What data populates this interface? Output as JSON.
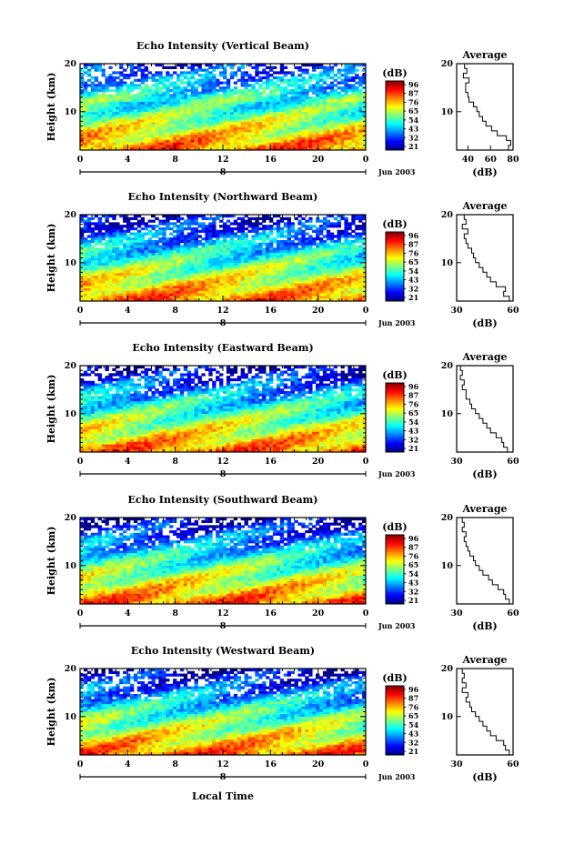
{
  "figure": {
    "x_axis_title": "Local Time",
    "date_label": "Jun 2003"
  },
  "chart_data": [
    {
      "type": "heatmap",
      "title": "Echo Intensity (Vertical Beam)",
      "ylabel": "Height (km)",
      "xlabel": "",
      "x_ticks": [
        "0",
        "4",
        "8",
        "12",
        "16",
        "20",
        "0"
      ],
      "y_ticks": [
        "20",
        "10"
      ],
      "ylim": [
        2,
        20
      ],
      "xlim": [
        0,
        24
      ],
      "day_marker": "8",
      "colorbar": {
        "unit": "(dB)",
        "ticks": [
          "96",
          "87",
          "76",
          "65",
          "54",
          "43",
          "32",
          "21"
        ]
      },
      "profile": {
        "title": "Average",
        "xlabel": "(dB)",
        "x_ticks": [
          "40",
          "60",
          "80"
        ],
        "xlim": [
          30,
          80
        ],
        "heights": [
          2.5,
          3.5,
          4.5,
          5.5,
          6.5,
          7.5,
          8.5,
          9.5,
          10.5,
          11.5,
          12.5,
          13.5,
          14.5,
          15.5,
          16.5,
          17.5,
          18.5,
          19.5
        ],
        "values": [
          76,
          78,
          74,
          66,
          61,
          56,
          53,
          50,
          48,
          45,
          41,
          40,
          38,
          38,
          41,
          36,
          39,
          37
        ]
      }
    },
    {
      "type": "heatmap",
      "title": "Echo Intensity (Northward Beam)",
      "ylabel": "Height (km)",
      "xlabel": "",
      "x_ticks": [
        "0",
        "4",
        "8",
        "12",
        "16",
        "20",
        "0"
      ],
      "y_ticks": [
        "20",
        "10"
      ],
      "ylim": [
        2,
        20
      ],
      "xlim": [
        0,
        24
      ],
      "day_marker": "8",
      "colorbar": {
        "unit": "(dB)",
        "ticks": [
          "96",
          "87",
          "76",
          "65",
          "54",
          "43",
          "32",
          "21"
        ]
      },
      "profile": {
        "title": "Average",
        "xlabel": "(dB)",
        "x_ticks": [
          "30",
          "60"
        ],
        "xlim": [
          30,
          60
        ],
        "heights": [
          2.5,
          3.5,
          4.5,
          5.5,
          6.5,
          7.5,
          8.5,
          9.5,
          10.5,
          11.5,
          12.5,
          13.5,
          14.5,
          15.5,
          16.5,
          17.5,
          18.5,
          19.5
        ],
        "values": [
          58,
          55,
          56,
          51,
          48,
          46,
          44,
          42,
          40,
          39,
          38,
          36,
          35,
          34,
          36,
          33,
          35,
          34
        ]
      }
    },
    {
      "type": "heatmap",
      "title": "Echo Intensity (Eastward Beam)",
      "ylabel": "Height (km)",
      "xlabel": "",
      "x_ticks": [
        "0",
        "4",
        "8",
        "12",
        "16",
        "20",
        "0"
      ],
      "y_ticks": [
        "20",
        "10"
      ],
      "ylim": [
        2,
        20
      ],
      "xlim": [
        0,
        24
      ],
      "day_marker": "8",
      "colorbar": {
        "unit": "(dB)",
        "ticks": [
          "96",
          "87",
          "76",
          "65",
          "54",
          "43",
          "32",
          "21"
        ]
      },
      "profile": {
        "title": "Average",
        "xlabel": "(dB)",
        "x_ticks": [
          "30",
          "60"
        ],
        "xlim": [
          30,
          60
        ],
        "heights": [
          2.5,
          3.5,
          4.5,
          5.5,
          6.5,
          7.5,
          8.5,
          9.5,
          10.5,
          11.5,
          12.5,
          13.5,
          14.5,
          15.5,
          16.5,
          17.5,
          18.5,
          19.5
        ],
        "values": [
          57,
          55,
          54,
          51,
          48,
          46,
          44,
          42,
          40,
          38,
          37,
          35,
          35,
          33,
          34,
          32,
          33,
          32
        ]
      }
    },
    {
      "type": "heatmap",
      "title": "Echo Intensity (Southward Beam)",
      "ylabel": "Height (km)",
      "xlabel": "",
      "x_ticks": [
        "0",
        "4",
        "8",
        "12",
        "16",
        "20",
        "0"
      ],
      "y_ticks": [
        "20",
        "10"
      ],
      "ylim": [
        2,
        20
      ],
      "xlim": [
        0,
        24
      ],
      "day_marker": "8",
      "colorbar": {
        "unit": "(dB)",
        "ticks": [
          "96",
          "87",
          "76",
          "65",
          "54",
          "43",
          "32",
          "21"
        ]
      },
      "profile": {
        "title": "Average",
        "xlabel": "(dB)",
        "x_ticks": [
          "30",
          "60"
        ],
        "xlim": [
          30,
          60
        ],
        "heights": [
          2.5,
          3.5,
          4.5,
          5.5,
          6.5,
          7.5,
          8.5,
          9.5,
          10.5,
          11.5,
          12.5,
          13.5,
          14.5,
          15.5,
          16.5,
          17.5,
          18.5,
          19.5
        ],
        "values": [
          58,
          56,
          55,
          52,
          49,
          47,
          44,
          42,
          40,
          39,
          37,
          36,
          35,
          34,
          35,
          33,
          34,
          33
        ]
      }
    },
    {
      "type": "heatmap",
      "title": "Echo Intensity (Westward Beam)",
      "ylabel": "Height (km)",
      "xlabel": "Local Time",
      "x_ticks": [
        "0",
        "4",
        "8",
        "12",
        "16",
        "20",
        "0"
      ],
      "y_ticks": [
        "20",
        "10"
      ],
      "ylim": [
        2,
        20
      ],
      "xlim": [
        0,
        24
      ],
      "day_marker": "8",
      "colorbar": {
        "unit": "(dB)",
        "ticks": [
          "96",
          "87",
          "76",
          "65",
          "54",
          "43",
          "32",
          "21"
        ]
      },
      "profile": {
        "title": "Average",
        "xlabel": "(dB)",
        "x_ticks": [
          "30",
          "60"
        ],
        "xlim": [
          30,
          60
        ],
        "heights": [
          2.5,
          3.5,
          4.5,
          5.5,
          6.5,
          7.5,
          8.5,
          9.5,
          10.5,
          11.5,
          12.5,
          13.5,
          14.5,
          15.5,
          16.5,
          17.5,
          18.5,
          19.5
        ],
        "values": [
          58,
          56,
          55,
          51,
          48,
          46,
          44,
          42,
          40,
          38,
          37,
          35,
          36,
          33,
          35,
          33,
          34,
          33
        ]
      }
    }
  ]
}
